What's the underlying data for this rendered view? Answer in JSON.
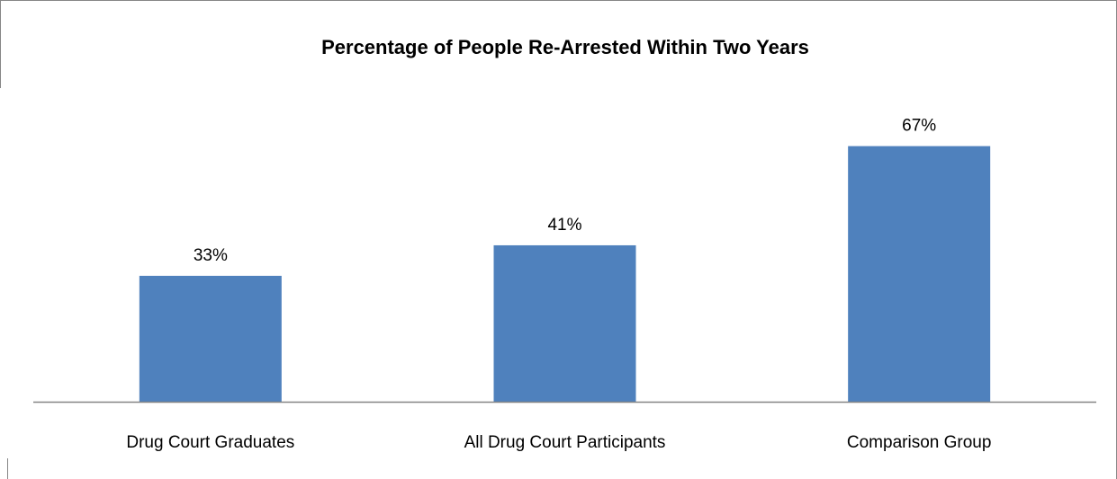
{
  "chart_data": {
    "type": "bar",
    "title": "Percentage of People Re-Arrested Within Two Years",
    "categories": [
      "Drug Court Graduates",
      "All Drug Court Participants",
      "Comparison Group"
    ],
    "values": [
      33,
      41,
      67
    ],
    "value_labels": [
      "33%",
      "41%",
      "67%"
    ],
    "xlabel": "",
    "ylabel": "",
    "ylim": [
      0,
      80
    ],
    "grid": false,
    "legend": "none",
    "colors": {
      "bar": "#4f81bd",
      "axis": "#868686",
      "border": "#868686"
    }
  }
}
